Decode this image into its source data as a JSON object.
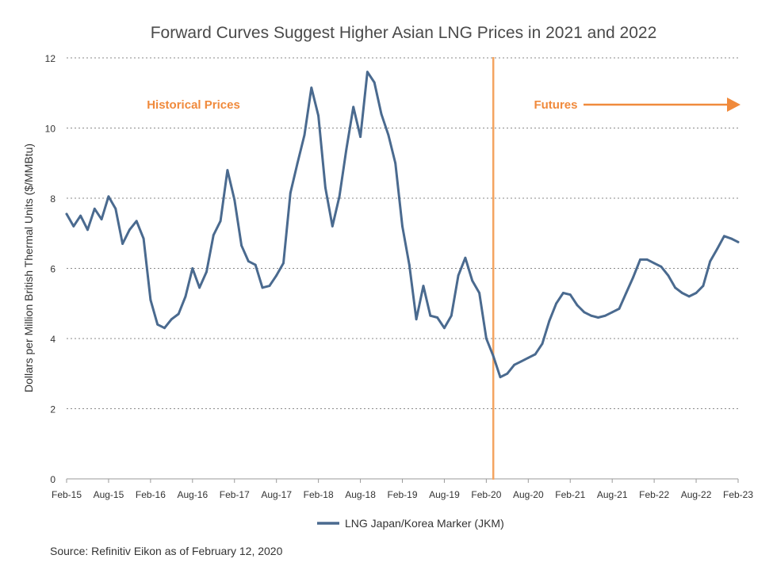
{
  "chart_data": {
    "type": "line",
    "title": "Forward Curves Suggest Higher Asian LNG Prices in 2021 and 2022",
    "ylabel": "Dollars per Million British Thermal Units ($/MMBtu)",
    "xlabel": "",
    "ylim": [
      0,
      12
    ],
    "yticks": [
      "0",
      "2",
      "4",
      "6",
      "8",
      "10",
      "12"
    ],
    "xlim": [
      0,
      96
    ],
    "xticks": [
      {
        "label": "Feb-15",
        "x": 0
      },
      {
        "label": "Aug-15",
        "x": 6
      },
      {
        "label": "Feb-16",
        "x": 12
      },
      {
        "label": "Aug-16",
        "x": 18
      },
      {
        "label": "Feb-17",
        "x": 24
      },
      {
        "label": "Aug-17",
        "x": 30
      },
      {
        "label": "Feb-18",
        "x": 36
      },
      {
        "label": "Aug-18",
        "x": 42
      },
      {
        "label": "Feb-19",
        "x": 48
      },
      {
        "label": "Aug-19",
        "x": 54
      },
      {
        "label": "Feb-20",
        "x": 60
      },
      {
        "label": "Aug-20",
        "x": 66
      },
      {
        "label": "Feb-21",
        "x": 72
      },
      {
        "label": "Aug-21",
        "x": 78
      },
      {
        "label": "Feb-22",
        "x": 84
      },
      {
        "label": "Aug-22",
        "x": 90
      },
      {
        "label": "Feb-23",
        "x": 96
      }
    ],
    "grid": true,
    "legend_position": "bottom",
    "divider_x": 61,
    "divider_color": "#F4A460",
    "annotations": {
      "historical": "Historical Prices",
      "futures": "Futures",
      "color": "#F08A3C"
    },
    "series": [
      {
        "name": "LNG Japan/Korea Marker (JKM)",
        "color": "#4A6A8F",
        "points": [
          [
            0,
            7.55
          ],
          [
            1,
            7.2
          ],
          [
            2,
            7.5
          ],
          [
            3,
            7.1
          ],
          [
            4,
            7.7
          ],
          [
            5,
            7.4
          ],
          [
            6,
            8.05
          ],
          [
            7,
            7.7
          ],
          [
            8,
            6.7
          ],
          [
            9,
            7.1
          ],
          [
            10,
            7.35
          ],
          [
            11,
            6.85
          ],
          [
            12,
            5.1
          ],
          [
            13,
            4.4
          ],
          [
            14,
            4.3
          ],
          [
            15,
            4.55
          ],
          [
            16,
            4.7
          ],
          [
            17,
            5.2
          ],
          [
            18,
            6.0
          ],
          [
            19,
            5.45
          ],
          [
            20,
            5.9
          ],
          [
            21,
            6.95
          ],
          [
            22,
            7.35
          ],
          [
            23,
            8.8
          ],
          [
            24,
            7.95
          ],
          [
            25,
            6.65
          ],
          [
            26,
            6.2
          ],
          [
            27,
            6.1
          ],
          [
            28,
            5.45
          ],
          [
            29,
            5.5
          ],
          [
            30,
            5.8
          ],
          [
            31,
            6.15
          ],
          [
            32,
            8.15
          ],
          [
            33,
            9.0
          ],
          [
            34,
            9.8
          ],
          [
            35,
            11.15
          ],
          [
            36,
            10.35
          ],
          [
            37,
            8.3
          ],
          [
            38,
            7.2
          ],
          [
            39,
            8.05
          ],
          [
            40,
            9.4
          ],
          [
            41,
            10.6
          ],
          [
            42,
            9.75
          ],
          [
            43,
            11.6
          ],
          [
            44,
            11.3
          ],
          [
            45,
            10.4
          ],
          [
            46,
            9.8
          ],
          [
            47,
            9.0
          ],
          [
            48,
            7.2
          ],
          [
            49,
            6.1
          ],
          [
            50,
            4.55
          ],
          [
            51,
            5.5
          ],
          [
            52,
            4.65
          ],
          [
            53,
            4.6
          ],
          [
            54,
            4.3
          ],
          [
            55,
            4.65
          ],
          [
            56,
            5.8
          ],
          [
            57,
            6.3
          ],
          [
            58,
            5.65
          ],
          [
            59,
            5.3
          ],
          [
            60,
            4.0
          ],
          [
            61,
            3.5
          ],
          [
            62,
            2.9
          ],
          [
            63,
            3.0
          ],
          [
            64,
            3.25
          ],
          [
            65,
            3.35
          ],
          [
            66,
            3.45
          ],
          [
            67,
            3.55
          ],
          [
            68,
            3.85
          ],
          [
            69,
            4.5
          ],
          [
            70,
            5.0
          ],
          [
            71,
            5.3
          ],
          [
            72,
            5.25
          ],
          [
            73,
            4.95
          ],
          [
            74,
            4.75
          ],
          [
            75,
            4.65
          ],
          [
            76,
            4.6
          ],
          [
            77,
            4.65
          ],
          [
            78,
            4.75
          ],
          [
            79,
            4.85
          ],
          [
            80,
            5.3
          ],
          [
            81,
            5.75
          ],
          [
            82,
            6.25
          ],
          [
            83,
            6.25
          ],
          [
            84,
            6.15
          ],
          [
            85,
            6.05
          ],
          [
            86,
            5.8
          ],
          [
            87,
            5.45
          ],
          [
            88,
            5.3
          ],
          [
            89,
            5.2
          ],
          [
            90,
            5.3
          ],
          [
            91,
            5.5
          ],
          [
            92,
            6.2
          ],
          [
            93,
            6.55
          ],
          [
            94,
            6.92
          ],
          [
            95,
            6.85
          ],
          [
            96,
            6.75
          ]
        ]
      }
    ]
  },
  "source": "Source: Refinitiv Eikon as of February 12, 2020"
}
